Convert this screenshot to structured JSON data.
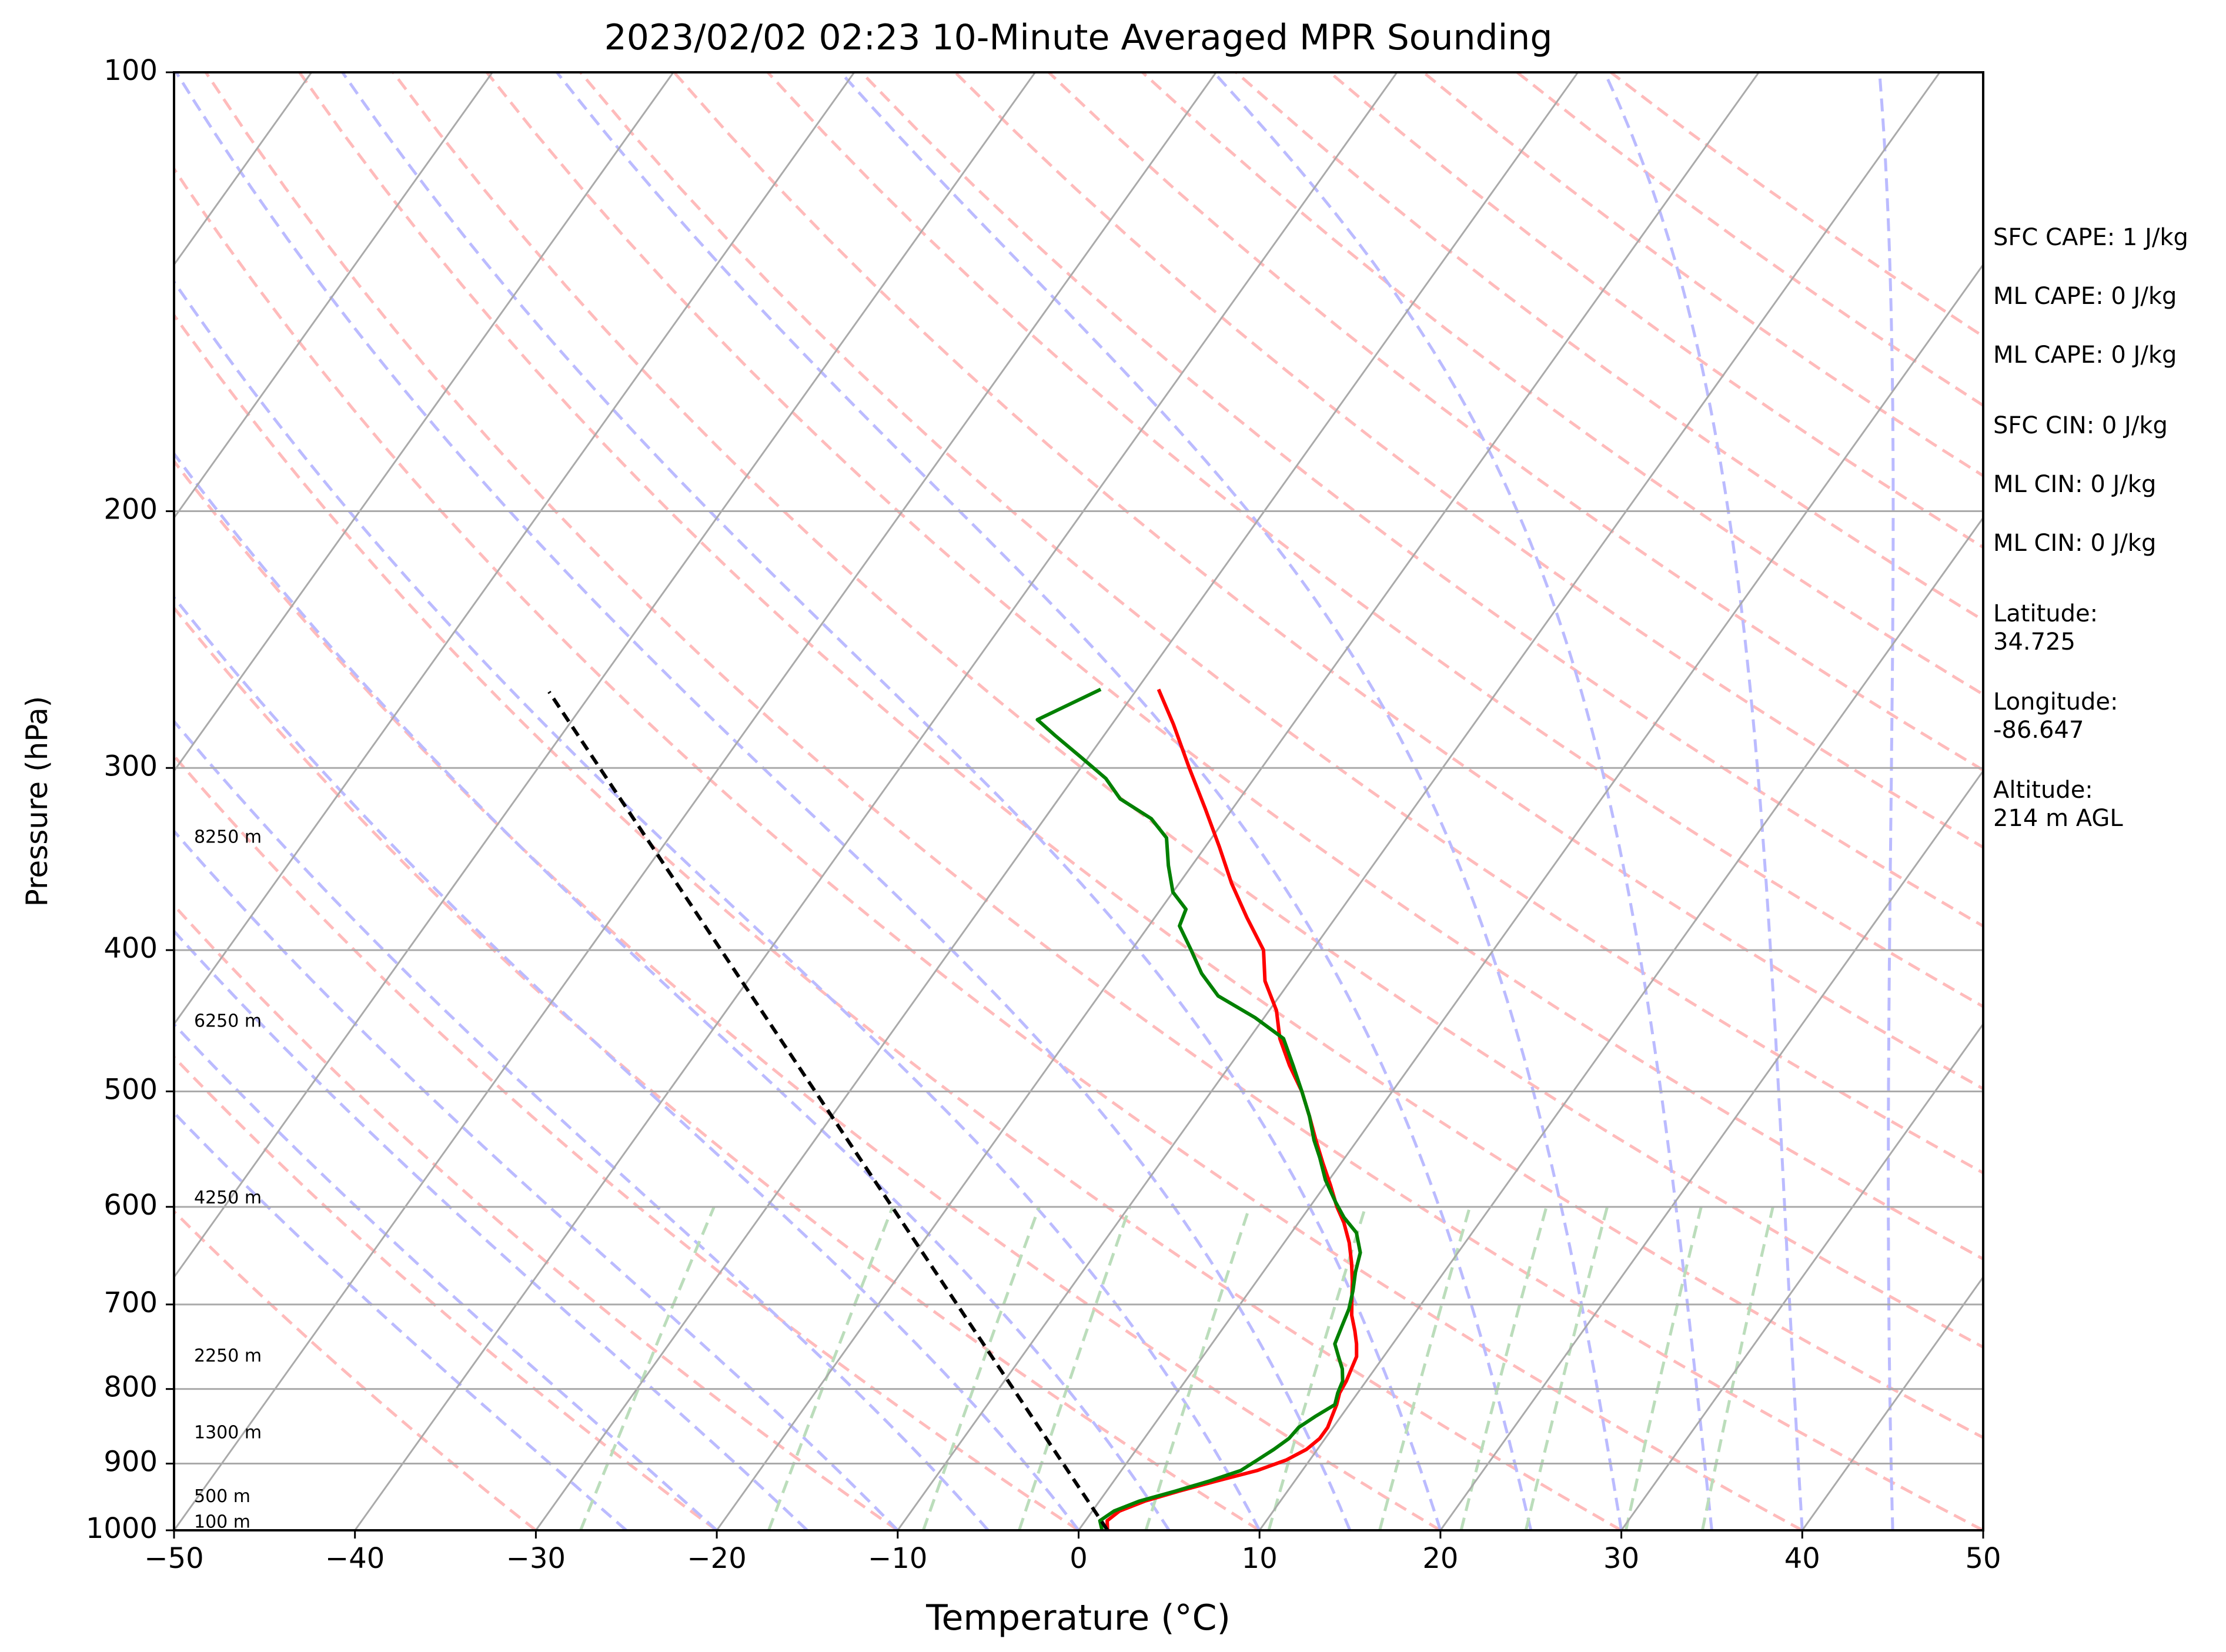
{
  "chart_data": {
    "type": "line",
    "title": "2023/02/02 02:23 10-Minute Averaged MPR Sounding",
    "xlabel": "Temperature (°C)",
    "ylabel": "Pressure (hPa)",
    "xlim": [
      -50,
      50
    ],
    "ylim": [
      1000,
      100
    ],
    "y_scale": "log",
    "x_ticks": [
      "−50",
      "−40",
      "−30",
      "−20",
      "−10",
      "0",
      "10",
      "20",
      "30",
      "40",
      "50"
    ],
    "y_ticks": [
      "100",
      "200",
      "300",
      "400",
      "500",
      "600",
      "700",
      "800",
      "900",
      "1000"
    ],
    "grid": true,
    "series": [
      {
        "color": "#ff0000",
        "points": [
          [
            1.6,
            1000
          ],
          [
            1.2,
            985
          ],
          [
            1.5,
            970
          ],
          [
            2.5,
            955
          ],
          [
            4.0,
            940
          ],
          [
            5.7,
            925
          ],
          [
            7.5,
            910
          ],
          [
            8.7,
            895
          ],
          [
            9.4,
            880
          ],
          [
            9.7,
            865
          ],
          [
            9.7,
            850
          ],
          [
            9.5,
            835
          ],
          [
            9.3,
            820
          ],
          [
            9.0,
            805
          ],
          [
            8.9,
            790
          ],
          [
            8.7,
            775
          ],
          [
            8.5,
            760
          ],
          [
            8.0,
            745
          ],
          [
            7.4,
            730
          ],
          [
            6.6,
            712
          ],
          [
            6.0,
            695
          ],
          [
            5.3,
            675
          ],
          [
            4.5,
            655
          ],
          [
            3.6,
            635
          ],
          [
            2.5,
            615
          ],
          [
            1.5,
            600
          ],
          [
            0.3,
            580
          ],
          [
            -1.0,
            560
          ],
          [
            -2.3,
            540
          ],
          [
            -3.6,
            520
          ],
          [
            -5.0,
            500
          ],
          [
            -6.7,
            480
          ],
          [
            -8.3,
            460
          ],
          [
            -9.6,
            440
          ],
          [
            -11.4,
            420
          ],
          [
            -12.7,
            400
          ],
          [
            -14.9,
            380
          ],
          [
            -17.1,
            360
          ],
          [
            -19.2,
            340
          ],
          [
            -21.5,
            320
          ],
          [
            -24.0,
            300
          ],
          [
            -26.6,
            280
          ],
          [
            -28.8,
            265
          ]
        ]
      },
      {
        "color": "#008000",
        "points": [
          [
            1.3,
            1000
          ],
          [
            0.8,
            985
          ],
          [
            1.2,
            970
          ],
          [
            2.2,
            955
          ],
          [
            3.8,
            940
          ],
          [
            5.3,
            925
          ],
          [
            6.6,
            910
          ],
          [
            7.1,
            895
          ],
          [
            7.6,
            880
          ],
          [
            8.0,
            865
          ],
          [
            8.1,
            850
          ],
          [
            8.6,
            835
          ],
          [
            9.2,
            820
          ],
          [
            8.9,
            805
          ],
          [
            8.7,
            790
          ],
          [
            8.2,
            775
          ],
          [
            7.5,
            760
          ],
          [
            6.8,
            745
          ],
          [
            6.5,
            725
          ],
          [
            6.2,
            705
          ],
          [
            5.7,
            685
          ],
          [
            5.1,
            665
          ],
          [
            4.6,
            645
          ],
          [
            3.6,
            625
          ],
          [
            2.3,
            610
          ],
          [
            1.2,
            595
          ],
          [
            -0.2,
            575
          ],
          [
            -1.4,
            555
          ],
          [
            -2.4,
            540
          ],
          [
            -3.6,
            520
          ],
          [
            -5.0,
            500
          ],
          [
            -6.5,
            480
          ],
          [
            -8.1,
            460
          ],
          [
            -10.5,
            445
          ],
          [
            -13.4,
            430
          ],
          [
            -15.2,
            415
          ],
          [
            -16.7,
            400
          ],
          [
            -18.3,
            385
          ],
          [
            -18.6,
            375
          ],
          [
            -20.0,
            365
          ],
          [
            -21.3,
            350
          ],
          [
            -22.5,
            335
          ],
          [
            -24.1,
            325
          ],
          [
            -26.6,
            315
          ],
          [
            -28.2,
            305
          ],
          [
            -30.4,
            295
          ],
          [
            -32.7,
            285
          ],
          [
            -34.3,
            278
          ],
          [
            -32.0,
            265
          ]
        ]
      },
      {
        "color": "#000000",
        "dashed": true,
        "points": [
          [
            1.6,
            1000
          ],
          [
            -62.4,
            266
          ]
        ]
      }
    ],
    "height_labels": [
      {
        "text": "100 m",
        "p": 988
      },
      {
        "text": "500 m",
        "p": 949
      },
      {
        "text": "1300 m",
        "p": 858
      },
      {
        "text": "2250 m",
        "p": 760
      },
      {
        "text": "4250 m",
        "p": 592
      },
      {
        "text": "6250 m",
        "p": 448
      },
      {
        "text": "8250 m",
        "p": 335
      }
    ],
    "reference_lines": {
      "isotherm_color": "#aaaaaa",
      "dry_adiabat_color": "#ffbbbb",
      "moist_adiabat_color": "#bbbbff",
      "mixing_ratio_color": "#bbddbb"
    }
  },
  "side_panel": [
    "SFC CAPE: 1 J/kg",
    "ML CAPE: 0 J/kg",
    "ML CAPE: 0 J/kg",
    "SFC CIN: 0 J/kg",
    "ML CIN: 0 J/kg",
    "ML CIN: 0 J/kg",
    "Latitude:\n34.725",
    "Longitude:\n-86.647",
    "Altitude:\n214 m AGL"
  ]
}
